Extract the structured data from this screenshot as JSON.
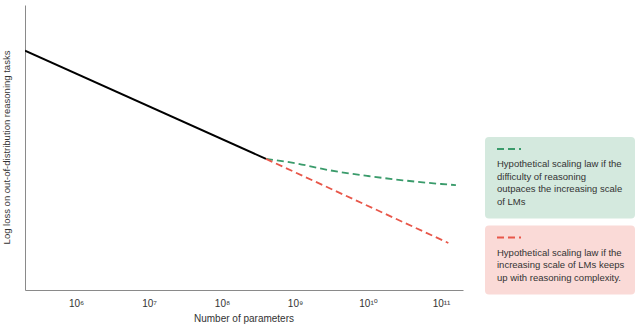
{
  "chart_data": {
    "type": "line",
    "x_label": "Number of parameters",
    "y_label": "Log loss on out-of-distribution reasoning tasks",
    "log": "x",
    "xlim": [
      200000,
      200000000000
    ],
    "xticks": [
      {
        "value": 1000000,
        "label": "10⁶"
      },
      {
        "value": 10000000,
        "label": "10⁷"
      },
      {
        "value": 100000000,
        "label": "10⁸"
      },
      {
        "value": 1000000000,
        "label": "10⁹"
      },
      {
        "value": 10000000000,
        "label": "10¹⁰"
      },
      {
        "value": 100000000000,
        "label": "10¹¹"
      }
    ],
    "ylim": [
      0,
      1
    ],
    "yticks": [],
    "tick_labels": "x",
    "grid": false,
    "legend": "right",
    "series": [
      {
        "color": "#000000",
        "line_style": "solid",
        "x": [
          200000,
          400000000
        ],
        "values": [
          0.84,
          0.46
        ]
      },
      {
        "name": "Hypothetical scaling law if the difficulty of reasoning outpaces the increasing scale of LMs",
        "color": "#3a9b6b",
        "line_style": "dashed",
        "x": [
          400000000,
          1000000000,
          3000000000,
          10000000000,
          30000000000,
          100000000000,
          160000000000
        ],
        "values": [
          0.46,
          0.445,
          0.42,
          0.4,
          0.385,
          0.372,
          0.368
        ]
      },
      {
        "name": "Hypothetical scaling law if the increasing scale of LMs keeps up with reasoning complexity.",
        "color": "#e8574a",
        "line_style": "dashed",
        "x": [
          400000000,
          126000000000
        ],
        "values": [
          0.46,
          0.165
        ]
      }
    ]
  }
}
